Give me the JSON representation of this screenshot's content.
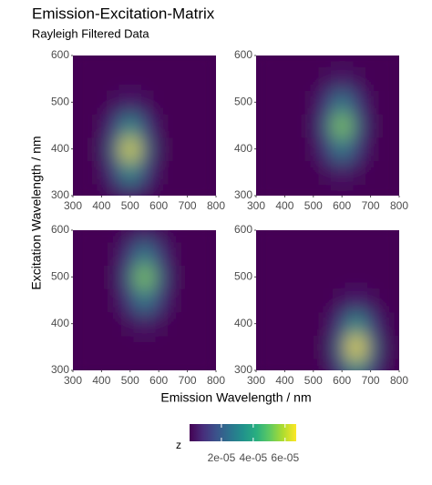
{
  "figure": {
    "title": "Emission-Excitation-Matrix",
    "subtitle": "Rayleigh Filtered Data",
    "x_label": "Emission Wavelength / nm",
    "y_label": "Excitation Wavelength / nm",
    "legend": {
      "title": "z",
      "zlim": [
        0,
        6.7e-05
      ],
      "ticks": [
        {
          "value": 2e-05,
          "label": "2e-05"
        },
        {
          "value": 4e-05,
          "label": "4e-05"
        },
        {
          "value": 6e-05,
          "label": "6e-05"
        }
      ],
      "colormap": [
        "#440154",
        "#472d7b",
        "#3b528b",
        "#2c728e",
        "#21918c",
        "#28ae80",
        "#5ec962",
        "#addc30",
        "#fde725"
      ]
    }
  },
  "chart_data": [
    {
      "type": "heatmap",
      "x": [
        300,
        350,
        400,
        450,
        500,
        550,
        600,
        650,
        700,
        750,
        800
      ],
      "y": [
        300,
        350,
        400,
        450,
        500,
        550,
        600
      ],
      "xlim": [
        300,
        800
      ],
      "ylim": [
        300,
        600
      ],
      "xticks": [
        300,
        400,
        500,
        600,
        700,
        800
      ],
      "yticks": [
        300,
        400,
        500,
        600
      ],
      "z": [
        [
          0,
          0,
          9.4e-08,
          2e-06,
          5.5e-06,
          2e-06,
          9.4e-08,
          0,
          0,
          0,
          0
        ],
        [
          0,
          0,
          6e-07,
          1.3e-05,
          3.5e-05,
          1.3e-05,
          6e-07,
          0,
          0,
          0,
          0
        ],
        [
          0,
          0,
          1.1e-06,
          2.3e-05,
          6.5e-05,
          2.3e-05,
          1.1e-06,
          0,
          0,
          0,
          0
        ],
        [
          0,
          0,
          6e-07,
          1.3e-05,
          3.5e-05,
          1.3e-05,
          6e-07,
          0,
          0,
          0,
          0
        ],
        [
          0,
          0,
          9.4e-08,
          2e-06,
          5.5e-06,
          2e-06,
          9.4e-08,
          0,
          0,
          0,
          0
        ],
        [
          0,
          0,
          0,
          9.4e-08,
          2.6e-07,
          9.4e-08,
          0,
          0,
          0,
          0,
          0
        ],
        [
          0,
          0,
          0,
          0,
          0,
          0,
          0,
          0,
          0,
          0,
          0
        ]
      ]
    },
    {
      "type": "heatmap",
      "x": [
        300,
        350,
        400,
        450,
        500,
        550,
        600,
        650,
        700,
        750,
        800
      ],
      "y": [
        300,
        350,
        400,
        450,
        500,
        550,
        600
      ],
      "xlim": [
        300,
        800
      ],
      "ylim": [
        300,
        600
      ],
      "xticks": [
        300,
        400,
        500,
        600,
        700,
        800
      ],
      "yticks": [
        300,
        400,
        500,
        600
      ],
      "z": [
        [
          0,
          0,
          0,
          0,
          0,
          7.9e-08,
          2.2e-07,
          7.9e-08,
          0,
          0,
          0
        ],
        [
          0,
          0,
          0,
          0,
          8e-08,
          1.7e-06,
          4.7e-06,
          1.7e-06,
          8e-08,
          0,
          0
        ],
        [
          0,
          0,
          0,
          0,
          5.1e-07,
          1.1e-05,
          3e-05,
          1.1e-05,
          5.1e-07,
          0,
          0
        ],
        [
          0,
          0,
          0,
          0,
          9.4e-07,
          2e-05,
          5.5e-05,
          2e-05,
          9.4e-07,
          0,
          0
        ],
        [
          0,
          0,
          0,
          0,
          5.1e-07,
          1.1e-05,
          3e-05,
          1.1e-05,
          5.1e-07,
          0,
          0
        ],
        [
          0,
          0,
          0,
          0,
          8e-08,
          1.7e-06,
          4.7e-06,
          1.7e-06,
          8e-08,
          0,
          0
        ],
        [
          0,
          0,
          0,
          0,
          0,
          7.9e-08,
          2.2e-07,
          7.9e-08,
          0,
          0,
          0
        ]
      ]
    },
    {
      "type": "heatmap",
      "x": [
        300,
        350,
        400,
        450,
        500,
        550,
        600,
        650,
        700,
        750,
        800
      ],
      "y": [
        300,
        350,
        400,
        450,
        500,
        550,
        600
      ],
      "xlim": [
        300,
        800
      ],
      "ylim": [
        300,
        600
      ],
      "xticks": [
        300,
        400,
        500,
        600,
        700,
        800
      ],
      "yticks": [
        300,
        400,
        500,
        600
      ],
      "z": [
        [
          0,
          0,
          0,
          0,
          0,
          0,
          0,
          0,
          0,
          0,
          0
        ],
        [
          0,
          0,
          0,
          0,
          7.9e-08,
          2.2e-07,
          7.9e-08,
          0,
          0,
          0,
          0
        ],
        [
          0,
          0,
          0,
          8e-08,
          1.7e-06,
          4.7e-06,
          1.7e-06,
          8e-08,
          0,
          0,
          0
        ],
        [
          0,
          0,
          0,
          5.1e-07,
          1.1e-05,
          3e-05,
          1.1e-05,
          5.1e-07,
          0,
          0,
          0
        ],
        [
          0,
          0,
          0,
          9.4e-07,
          2e-05,
          5.5e-05,
          2e-05,
          9.4e-07,
          0,
          0,
          0
        ],
        [
          0,
          0,
          0,
          5.1e-07,
          1.1e-05,
          3e-05,
          1.1e-05,
          5.1e-07,
          0,
          0,
          0
        ],
        [
          0,
          0,
          0,
          8e-08,
          1.7e-06,
          4.7e-06,
          1.7e-06,
          8e-08,
          0,
          0,
          0
        ]
      ]
    },
    {
      "type": "heatmap",
      "x": [
        300,
        350,
        400,
        450,
        500,
        550,
        600,
        650,
        700,
        750,
        800
      ],
      "y": [
        300,
        350,
        400,
        450,
        500,
        550,
        600
      ],
      "xlim": [
        300,
        800
      ],
      "ylim": [
        300,
        600
      ],
      "xticks": [
        300,
        400,
        500,
        600,
        700,
        800
      ],
      "yticks": [
        300,
        400,
        500,
        600
      ],
      "z": [
        [
          0,
          0,
          0,
          0,
          0,
          6.2e-07,
          1.3e-05,
          3.6e-05,
          1.3e-05,
          6.2e-07,
          0
        ],
        [
          0,
          0,
          0,
          0,
          0,
          1.1e-06,
          2.4e-05,
          6.7e-05,
          2.4e-05,
          1.1e-06,
          0
        ],
        [
          0,
          0,
          0,
          0,
          0,
          6.2e-07,
          1.3e-05,
          3.6e-05,
          1.3e-05,
          6.2e-07,
          0
        ],
        [
          0,
          0,
          0,
          0,
          0,
          9.7e-08,
          2e-06,
          5.7e-06,
          2e-06,
          9.7e-08,
          0
        ],
        [
          0,
          0,
          0,
          0,
          0,
          0,
          9.6e-08,
          2.7e-07,
          9.6e-08,
          0,
          0
        ],
        [
          0,
          0,
          0,
          0,
          0,
          0,
          0,
          0,
          0,
          0,
          0
        ],
        [
          0,
          0,
          0,
          0,
          0,
          0,
          0,
          0,
          0,
          0,
          0
        ]
      ]
    }
  ]
}
